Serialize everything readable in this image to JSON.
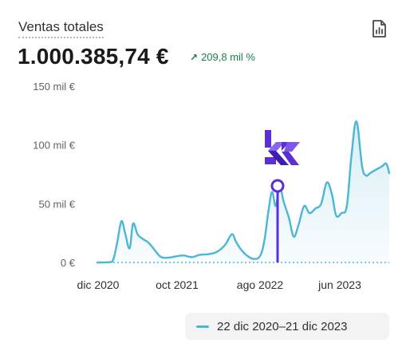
{
  "header": {
    "title": "Ventas totales",
    "total": "1.000.385,74 €",
    "delta": "209,8 mil %",
    "colors": {
      "accent": "#4bb6d8",
      "positive": "#1a7f4b",
      "marker": "#5b2fd6"
    }
  },
  "icons": {
    "export": "report-icon",
    "delta_arrow": "arrow-up-right-icon"
  },
  "chart_data": {
    "type": "area",
    "y_ticks": [
      "150 mil €",
      "100 mil €",
      "50 mil €",
      "0 €"
    ],
    "x_ticks": [
      "dic 2020",
      "oct 2021",
      "ago 2022",
      "jun 2023"
    ],
    "ylim": [
      0,
      150000
    ],
    "x_range": [
      "2020-12-22",
      "2023-12-21"
    ],
    "series": [
      {
        "name": "22 dic 2020–21 dic 2023",
        "x": [
          "2020-12-22",
          "2021-01-15",
          "2021-02-15",
          "2021-03-05",
          "2021-03-22",
          "2021-04-05",
          "2021-04-22",
          "2021-05-05",
          "2021-05-22",
          "2021-06-10",
          "2021-07-01",
          "2021-07-20",
          "2021-08-15",
          "2021-09-10",
          "2021-10-10",
          "2021-11-10",
          "2021-12-10",
          "2022-01-10",
          "2022-02-10",
          "2022-03-15",
          "2022-04-15",
          "2022-05-10",
          "2022-05-25",
          "2022-06-10",
          "2022-07-05",
          "2022-08-01",
          "2022-08-25",
          "2022-09-10",
          "2022-09-25",
          "2022-10-08",
          "2022-10-22",
          "2022-11-05",
          "2022-11-20",
          "2022-12-10",
          "2022-12-28",
          "2023-01-15",
          "2023-02-05",
          "2023-02-25",
          "2023-03-20",
          "2023-04-10",
          "2023-05-01",
          "2023-05-20",
          "2023-06-05",
          "2023-06-25",
          "2023-07-15",
          "2023-08-01",
          "2023-08-20",
          "2023-09-10",
          "2023-09-25",
          "2023-10-10",
          "2023-10-25",
          "2023-11-10",
          "2023-11-25",
          "2023-12-10",
          "2023-12-21"
        ],
        "values": [
          0,
          0,
          500,
          15000,
          35000,
          25000,
          12000,
          33000,
          24000,
          20000,
          17000,
          12000,
          5000,
          4000,
          5000,
          6000,
          4500,
          6500,
          7000,
          9000,
          15000,
          24000,
          18000,
          12000,
          6000,
          3000,
          6000,
          20000,
          45000,
          60000,
          48000,
          66000,
          52000,
          38000,
          22000,
          32000,
          48000,
          42000,
          46000,
          50000,
          68000,
          58000,
          40000,
          42000,
          48000,
          90000,
          120000,
          82000,
          74000,
          76000,
          78000,
          80000,
          82000,
          84000,
          76000
        ]
      }
    ],
    "baseline_label": "0 €",
    "legend": {
      "position": "bottom-right",
      "label": "22 dic 2020–21 dic 2023"
    },
    "grid": false
  }
}
